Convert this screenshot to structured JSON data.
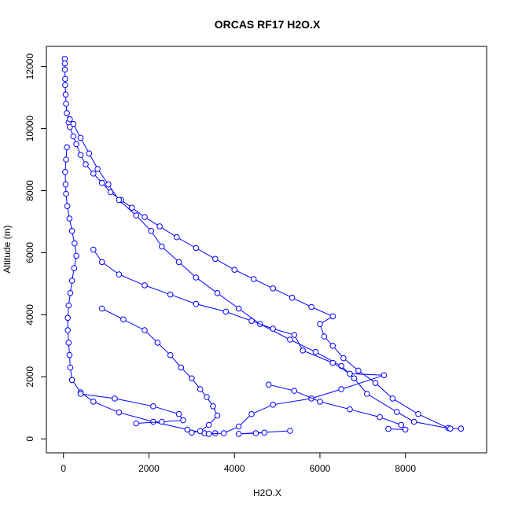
{
  "chart_data": {
    "type": "scatter",
    "title": "ORCAS RF17 H2O.X",
    "xlabel": "H2O.X",
    "ylabel": "Altitude (m)",
    "xlim": [
      -400,
      9900
    ],
    "ylim": [
      -450,
      12650
    ],
    "x_ticks": [
      0,
      2000,
      4000,
      6000,
      8000
    ],
    "y_ticks": [
      0,
      2000,
      4000,
      6000,
      8000,
      10000,
      12000
    ],
    "grid": false,
    "legend": "none",
    "series_color": "#0000ff",
    "marker": "open-circle",
    "line_style": "solid",
    "series": [
      {
        "values": [
          [
            30,
            12250
          ],
          [
            30,
            12100
          ],
          [
            30,
            11900
          ],
          [
            40,
            11600
          ],
          [
            40,
            11400
          ],
          [
            50,
            11100
          ],
          [
            60,
            10800
          ],
          [
            80,
            10500
          ],
          [
            120,
            10200
          ],
          [
            150,
            10050
          ],
          [
            230,
            9750
          ],
          [
            300,
            9500
          ],
          [
            400,
            9150
          ],
          [
            520,
            8850
          ],
          [
            700,
            8550
          ],
          [
            900,
            8250
          ],
          [
            1100,
            7950
          ],
          [
            1350,
            7700
          ],
          [
            1600,
            7450
          ],
          [
            1900,
            7150
          ],
          [
            2250,
            6850
          ],
          [
            2650,
            6500
          ],
          [
            3100,
            6150
          ],
          [
            3550,
            5800
          ],
          [
            4000,
            5450
          ],
          [
            4450,
            5150
          ],
          [
            4900,
            4850
          ],
          [
            5350,
            4550
          ],
          [
            5800,
            4250
          ],
          [
            6300,
            3950
          ],
          [
            6000,
            3700
          ],
          [
            6100,
            3300
          ],
          [
            6300,
            3000
          ],
          [
            6550,
            2600
          ],
          [
            6900,
            2200
          ],
          [
            7300,
            1800
          ],
          [
            7700,
            1300
          ],
          [
            8300,
            800
          ],
          [
            9000,
            350
          ]
        ]
      },
      {
        "values": [
          [
            9300,
            330
          ],
          [
            9050,
            330
          ],
          [
            8200,
            550
          ],
          [
            7800,
            870
          ],
          [
            7100,
            1450
          ],
          [
            6800,
            1950
          ],
          [
            6500,
            2350
          ],
          [
            5900,
            2800
          ],
          [
            5300,
            3200
          ],
          [
            4600,
            3700
          ],
          [
            4100,
            4200
          ],
          [
            3600,
            4700
          ],
          [
            3100,
            5200
          ],
          [
            2700,
            5700
          ],
          [
            2300,
            6200
          ],
          [
            2050,
            6700
          ],
          [
            1700,
            7200
          ],
          [
            1300,
            7700
          ],
          [
            1050,
            8200
          ],
          [
            800,
            8700
          ],
          [
            600,
            9200
          ],
          [
            400,
            9700
          ],
          [
            230,
            10150
          ],
          [
            150,
            10300
          ]
        ]
      },
      {
        "values": [
          [
            80,
            9400
          ],
          [
            60,
            9000
          ],
          [
            40,
            8600
          ],
          [
            50,
            8200
          ],
          [
            60,
            7900
          ],
          [
            90,
            7500
          ],
          [
            140,
            7100
          ],
          [
            200,
            6700
          ],
          [
            260,
            6300
          ],
          [
            300,
            5900
          ],
          [
            250,
            5500
          ],
          [
            200,
            5100
          ],
          [
            160,
            4700
          ],
          [
            120,
            4300
          ],
          [
            100,
            3900
          ],
          [
            100,
            3500
          ],
          [
            120,
            3100
          ],
          [
            140,
            2700
          ],
          [
            160,
            2300
          ],
          [
            200,
            1900
          ],
          [
            400,
            1500
          ],
          [
            700,
            1200
          ],
          [
            1300,
            850
          ],
          [
            2100,
            550
          ],
          [
            2900,
            300
          ],
          [
            3300,
            180
          ],
          [
            3550,
            180
          ]
        ]
      },
      {
        "values": [
          [
            700,
            6100
          ],
          [
            900,
            5700
          ],
          [
            1300,
            5300
          ],
          [
            1900,
            4950
          ],
          [
            2500,
            4650
          ],
          [
            3100,
            4350
          ],
          [
            3800,
            4100
          ],
          [
            4400,
            3800
          ],
          [
            4900,
            3550
          ],
          [
            5400,
            3350
          ],
          [
            5600,
            2850
          ],
          [
            6300,
            2450
          ],
          [
            6700,
            2100
          ],
          [
            7500,
            2050
          ],
          [
            6500,
            1600
          ],
          [
            5800,
            1300
          ],
          [
            4900,
            1100
          ],
          [
            4400,
            800
          ],
          [
            4100,
            400
          ],
          [
            3750,
            180
          ],
          [
            3400,
            160
          ]
        ]
      },
      {
        "values": [
          [
            900,
            4200
          ],
          [
            1400,
            3850
          ],
          [
            1900,
            3500
          ],
          [
            2200,
            3100
          ],
          [
            2500,
            2700
          ],
          [
            2750,
            2300
          ],
          [
            3000,
            1950
          ],
          [
            3200,
            1600
          ],
          [
            3350,
            1350
          ],
          [
            3500,
            1050
          ],
          [
            3600,
            750
          ],
          [
            3400,
            450
          ],
          [
            3200,
            250
          ],
          [
            3000,
            200
          ]
        ]
      },
      {
        "values": [
          [
            4800,
            1750
          ],
          [
            5400,
            1550
          ],
          [
            6000,
            1200
          ],
          [
            6700,
            950
          ],
          [
            7400,
            700
          ],
          [
            7900,
            450
          ],
          [
            8000,
            300
          ],
          [
            7600,
            320
          ]
        ]
      },
      {
        "values": [
          [
            400,
            1450
          ],
          [
            1200,
            1300
          ],
          [
            2100,
            1050
          ],
          [
            2700,
            800
          ],
          [
            2800,
            600
          ],
          [
            2300,
            550
          ],
          [
            1700,
            500
          ]
        ]
      },
      {
        "values": [
          [
            4700,
            200
          ],
          [
            4500,
            180
          ],
          [
            4100,
            160
          ],
          [
            5300,
            260
          ]
        ]
      }
    ]
  }
}
